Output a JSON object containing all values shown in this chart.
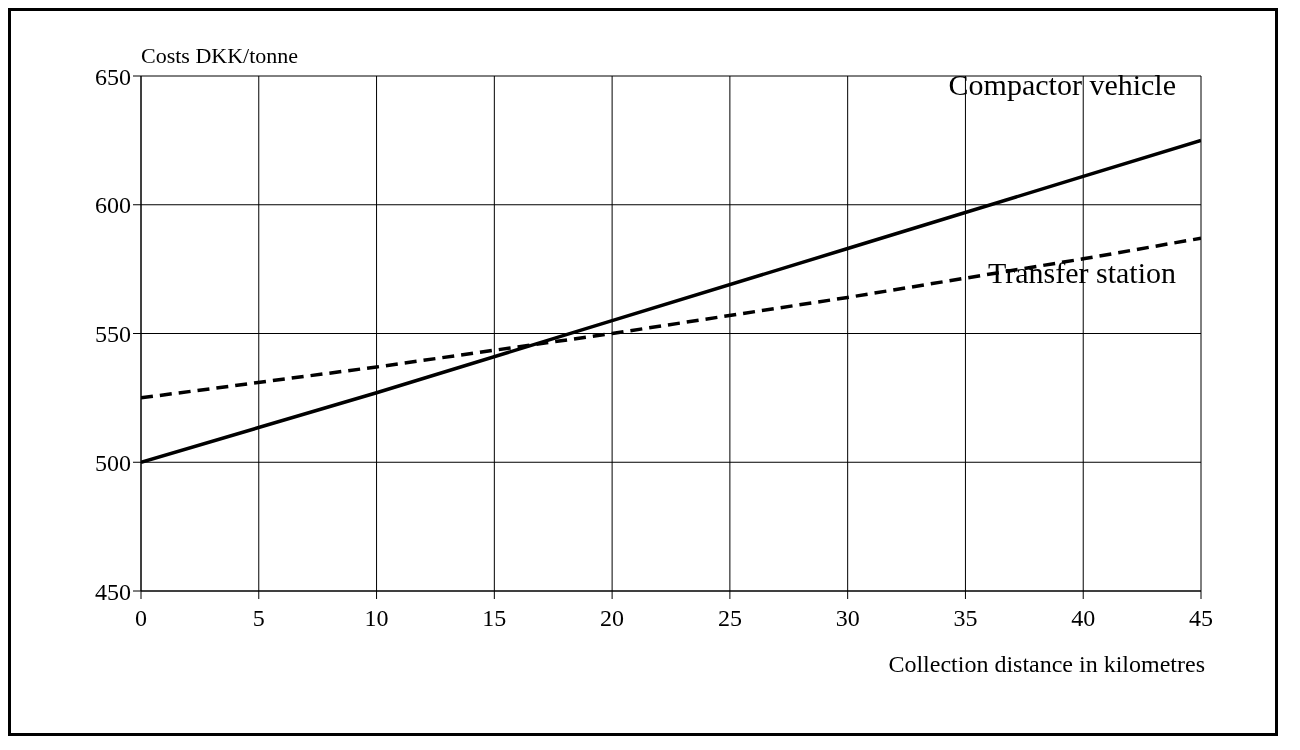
{
  "chart_data": {
    "type": "line",
    "xlabel": "Collection distance in kilometres",
    "ylabel": "Costs DKK/tonne",
    "x": [
      0,
      10,
      20,
      30,
      40,
      45
    ],
    "series": [
      {
        "name": "Compactor vehicle",
        "color": "#000000",
        "line_style": "solid",
        "values": [
          500,
          527,
          555,
          583,
          611,
          625
        ]
      },
      {
        "name": "Transfer station",
        "color": "#000000",
        "line_style": "dashed",
        "values": [
          525,
          537,
          550,
          564,
          579,
          587
        ]
      }
    ],
    "xlim": [
      0,
      45
    ],
    "xticks": [
      0,
      5,
      10,
      15,
      20,
      25,
      30,
      35,
      40,
      45
    ],
    "ylim": [
      450,
      650
    ],
    "yticks": [
      450,
      500,
      550,
      600,
      650
    ],
    "grid": true,
    "legend": false,
    "marker": "none"
  }
}
